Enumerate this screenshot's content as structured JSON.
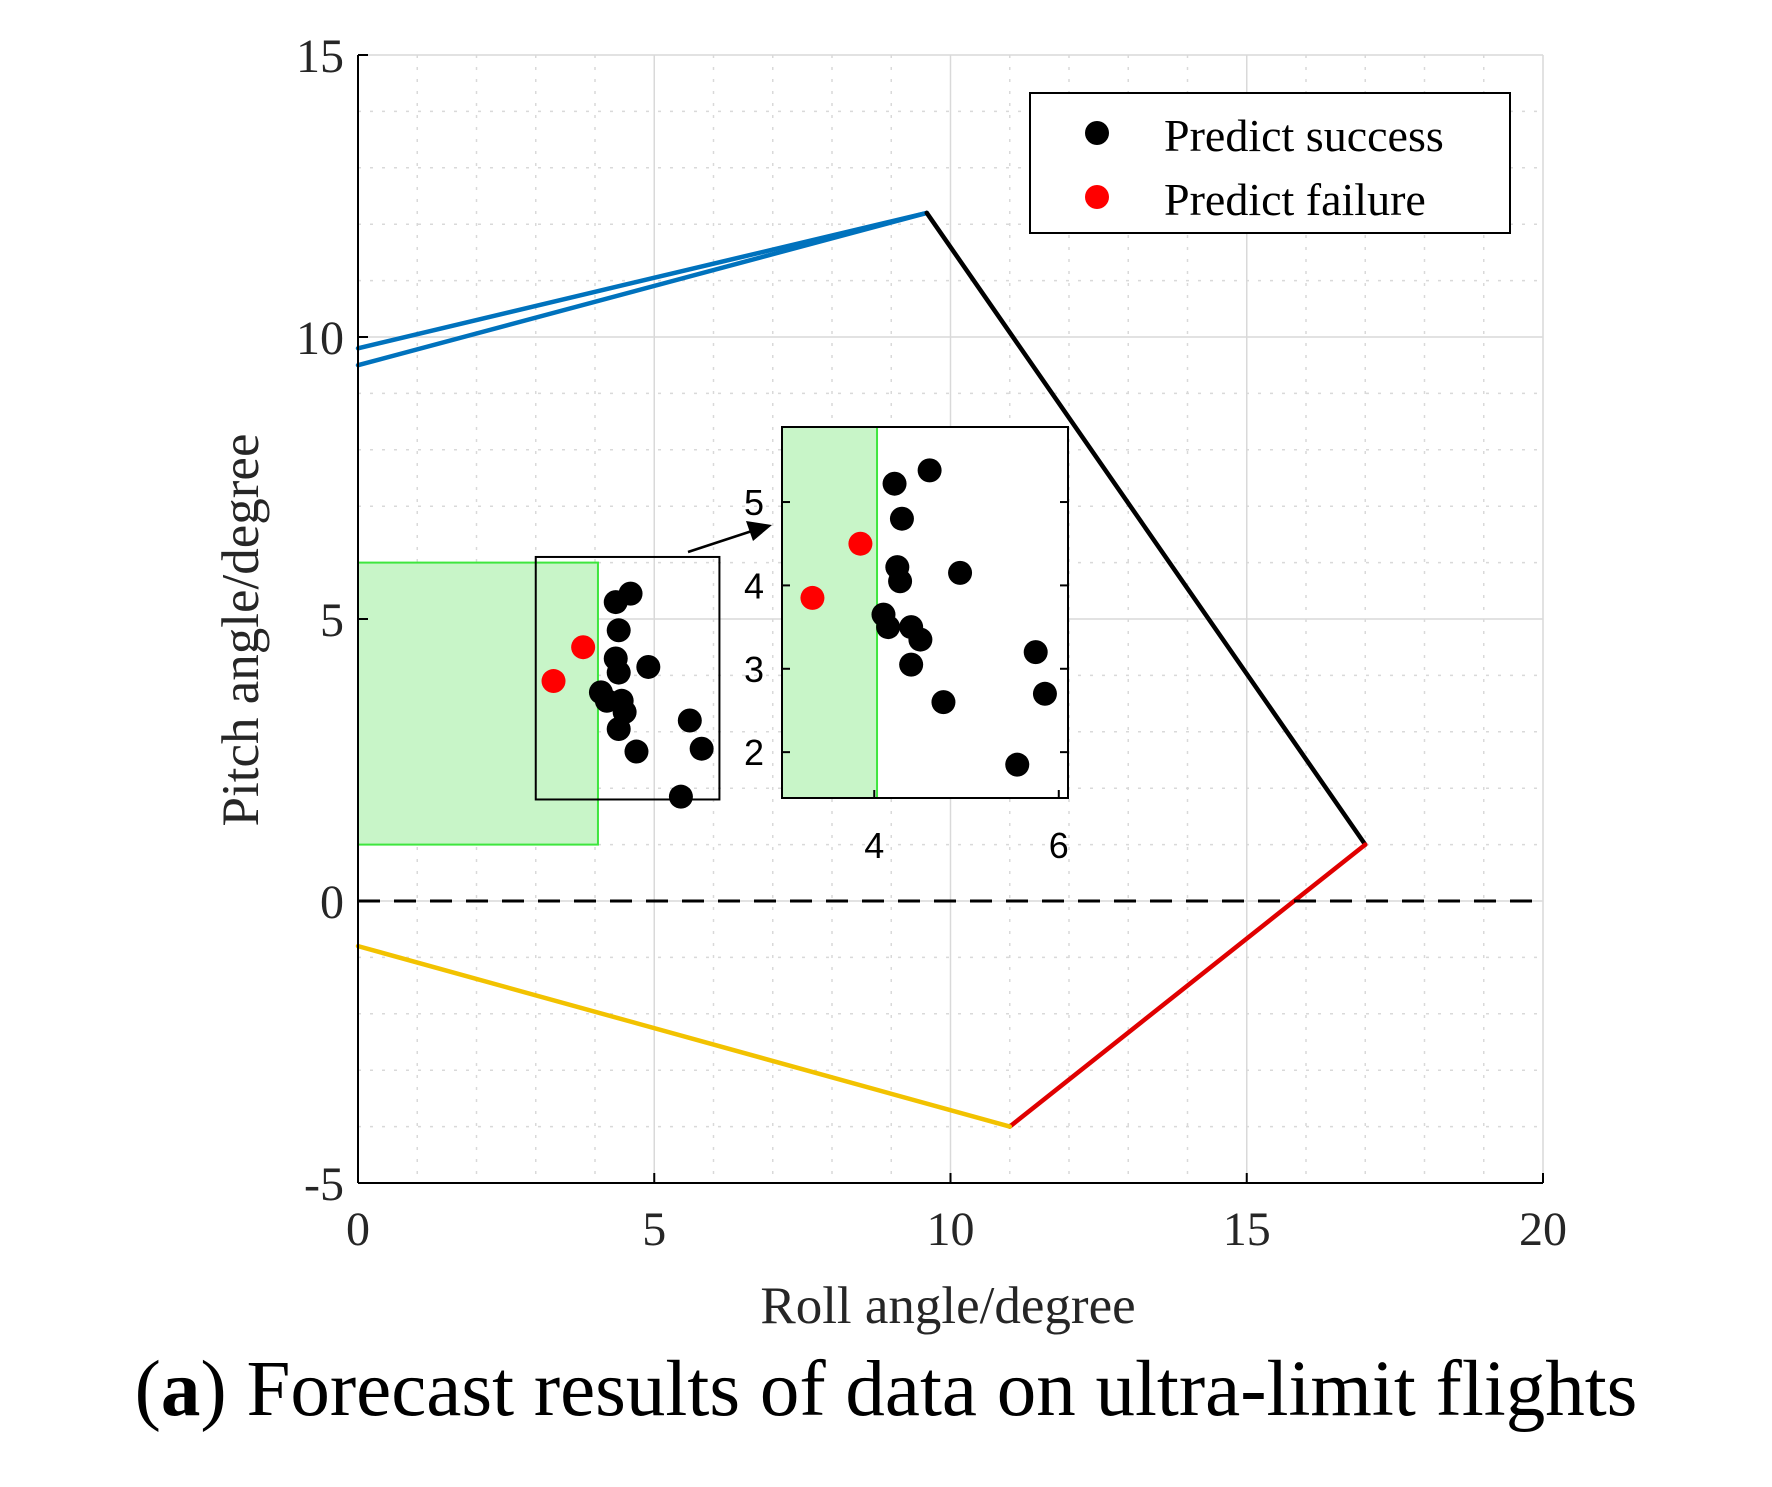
{
  "colors": {
    "background": "#ffffff",
    "grid": "#d9d9d9",
    "axis": "#000000",
    "text": "#262626",
    "success_marker": "#000000",
    "failure_marker": "#ff0000",
    "blue_boundary": "#0072bd",
    "black_boundary": "#000000",
    "red_boundary": "#e00000",
    "yellow_boundary": "#f2c200",
    "green_fill": "#c8f5c8",
    "green_edge": "#3ee63e"
  },
  "caption": {
    "label": "a",
    "open": "(",
    "close": ")",
    "text": " Forecast results of data on ultra-limit flights"
  },
  "chart_data": [
    {
      "type": "scatter",
      "xlabel": "Roll angle/degree",
      "ylabel": "Pitch angle/degree",
      "xlim": [
        0,
        20
      ],
      "ylim": [
        -5,
        15
      ],
      "xticks": [
        0,
        5,
        10,
        15,
        20
      ],
      "xtick_labels": [
        "0",
        "5",
        "10",
        "15",
        "20"
      ],
      "yticks": [
        -5,
        0,
        5,
        10,
        15
      ],
      "ytick_labels": [
        "-5",
        "0",
        "5",
        "10",
        "15"
      ],
      "grid": true,
      "minor_grid": true,
      "legend": {
        "position": "top-right",
        "entries": [
          {
            "label": "Predict success",
            "color": "#000000"
          },
          {
            "label": "Predict failure",
            "color": "#ff0000"
          }
        ]
      },
      "boundaries": [
        {
          "name": "upper-boundary-1",
          "color": "#0072bd",
          "points": [
            [
              0,
              9.8
            ],
            [
              9.6,
              12.2
            ]
          ]
        },
        {
          "name": "upper-boundary-2",
          "color": "#0072bd",
          "points": [
            [
              0,
              9.5
            ],
            [
              9.6,
              12.2
            ]
          ]
        },
        {
          "name": "right-upper-boundary",
          "color": "#000000",
          "points": [
            [
              9.6,
              12.2
            ],
            [
              17.0,
              1.0
            ]
          ]
        },
        {
          "name": "right-lower-boundary",
          "color": "#e00000",
          "points": [
            [
              17.0,
              1.0
            ],
            [
              11.0,
              -4.0
            ]
          ]
        },
        {
          "name": "lower-boundary",
          "color": "#f2c200",
          "points": [
            [
              11.0,
              -4.0
            ],
            [
              0,
              -0.8
            ]
          ]
        }
      ],
      "reference_line": {
        "y": 0,
        "style": "dashed",
        "color": "#000000"
      },
      "shaded_region": {
        "x": [
          0,
          4.05
        ],
        "y": [
          1.0,
          6.0
        ],
        "color": "#c8f5c8"
      },
      "zoom_box": {
        "x": [
          3.0,
          6.1
        ],
        "y": [
          1.8,
          6.1
        ]
      },
      "series": [
        {
          "name": "Predict success",
          "color": "#000000",
          "points": [
            [
              4.35,
              5.3
            ],
            [
              4.6,
              5.45
            ],
            [
              4.4,
              4.8
            ],
            [
              4.9,
              4.15
            ],
            [
              4.35,
              4.3
            ],
            [
              4.4,
              4.05
            ],
            [
              4.1,
              3.7
            ],
            [
              4.2,
              3.55
            ],
            [
              4.45,
              3.55
            ],
            [
              4.5,
              3.35
            ],
            [
              4.4,
              3.05
            ],
            [
              4.7,
              2.65
            ],
            [
              5.6,
              3.2
            ],
            [
              5.8,
              2.7
            ],
            [
              5.45,
              1.85
            ]
          ]
        },
        {
          "name": "Predict failure",
          "color": "#ff0000",
          "points": [
            [
              3.3,
              3.9
            ],
            [
              3.8,
              4.5
            ]
          ]
        }
      ]
    },
    {
      "type": "scatter",
      "name": "zoom-inset",
      "xlim": [
        3.0,
        6.1
      ],
      "ylim": [
        1.45,
        5.9
      ],
      "xticks": [
        4,
        6
      ],
      "xtick_labels": [
        "4",
        "6"
      ],
      "yticks": [
        2,
        3,
        4,
        5
      ],
      "ytick_labels": [
        "2",
        "3",
        "4",
        "5"
      ],
      "shaded_region": {
        "x": [
          3.0,
          4.03
        ],
        "y": [
          1.45,
          5.9
        ],
        "color": "#c8f5c8"
      },
      "series": [
        {
          "name": "Predict success",
          "color": "#000000",
          "points": [
            [
              4.22,
              5.22
            ],
            [
              4.6,
              5.38
            ],
            [
              4.3,
              4.8
            ],
            [
              4.93,
              4.15
            ],
            [
              4.25,
              4.22
            ],
            [
              4.28,
              4.05
            ],
            [
              4.1,
              3.65
            ],
            [
              4.15,
              3.5
            ],
            [
              4.4,
              3.5
            ],
            [
              4.5,
              3.35
            ],
            [
              4.4,
              3.05
            ],
            [
              4.75,
              2.6
            ],
            [
              5.75,
              3.2
            ],
            [
              5.85,
              2.7
            ],
            [
              5.55,
              1.85
            ]
          ]
        },
        {
          "name": "Predict failure",
          "color": "#ff0000",
          "points": [
            [
              3.33,
              3.85
            ],
            [
              3.85,
              4.5
            ]
          ]
        }
      ]
    }
  ]
}
